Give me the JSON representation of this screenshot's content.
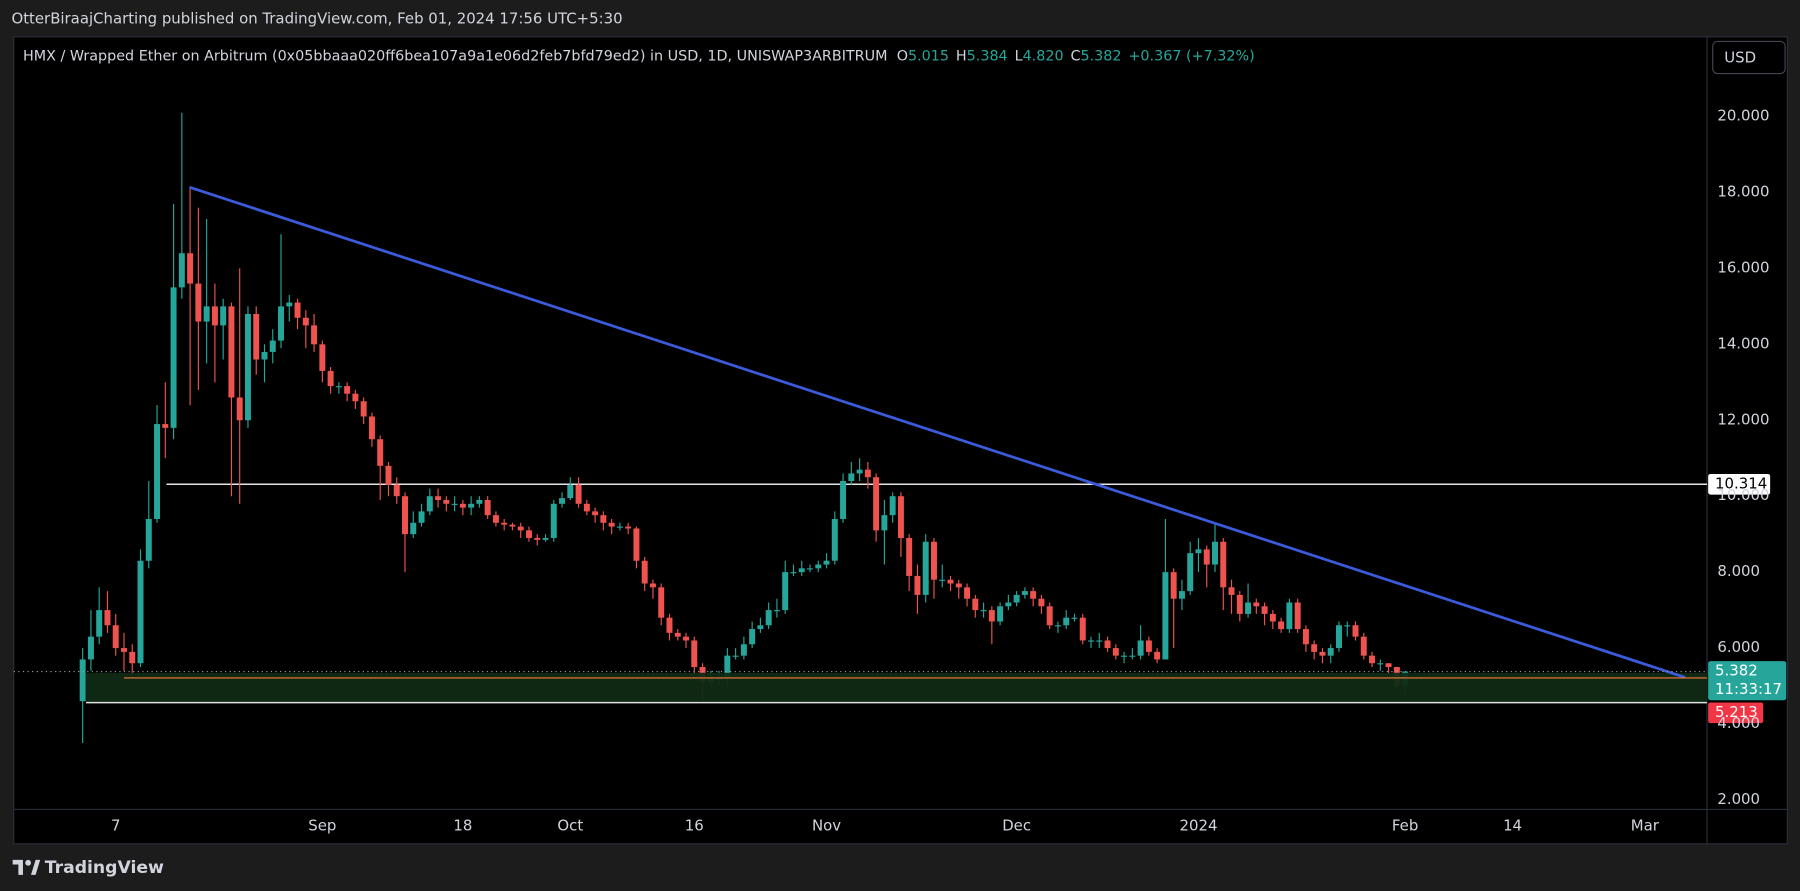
{
  "header": {
    "publisher": "OtterBiraajCharting published on TradingView.com, Feb 01, 2024 17:56 UTC+5:30"
  },
  "currency_button": "USD",
  "footer": {
    "brand": "TradingView"
  },
  "chart_data": {
    "type": "candlestick",
    "title": "HMX / Wrapped Ether on Arbitrum (0x05bbaaa020ff6bea107a9a1e06d2feb7bfd79ed2) in USD, 1D, UNISWAP3ARBITRUM",
    "ohlc_legend": {
      "o_label": "O",
      "open": "5.015",
      "h_label": "H",
      "high": "5.384",
      "l_label": "L",
      "low": "4.820",
      "c_label": "C",
      "close": "5.382",
      "change": "+0.367 (+7.32%)"
    },
    "up_color": "#26a69a",
    "down_color": "#ef5350",
    "log_scale": false,
    "grid": false,
    "ylim": [
      1.75,
      22.1
    ],
    "yticks": [
      {
        "value": 2,
        "label": "2.000"
      },
      {
        "value": 4,
        "label": "4.000"
      },
      {
        "value": 6,
        "label": "6.000"
      },
      {
        "value": 8,
        "label": "8.000"
      },
      {
        "value": 10,
        "label": "10.000"
      },
      {
        "value": 12,
        "label": "12.000"
      },
      {
        "value": 14,
        "label": "14.000"
      },
      {
        "value": 16,
        "label": "16.000"
      },
      {
        "value": 18,
        "label": "18.000"
      },
      {
        "value": 20,
        "label": "20.000"
      }
    ],
    "horizontal_level": 10.314,
    "last_price": 5.382,
    "countdown": "11:33:17",
    "alert_level": 5.213,
    "categories": [
      null,
      null,
      null,
      null,
      "7",
      null,
      null,
      null,
      null,
      null,
      null,
      null,
      null,
      null,
      null,
      null,
      null,
      null,
      null,
      null,
      null,
      null,
      null,
      null,
      null,
      null,
      null,
      null,
      null,
      "Sep",
      null,
      null,
      null,
      null,
      null,
      null,
      null,
      null,
      null,
      null,
      null,
      null,
      null,
      null,
      null,
      null,
      "18",
      null,
      null,
      null,
      null,
      null,
      null,
      null,
      null,
      null,
      null,
      null,
      null,
      "Oct",
      null,
      null,
      null,
      null,
      null,
      null,
      null,
      null,
      null,
      null,
      null,
      null,
      null,
      null,
      "16",
      null,
      null,
      null,
      null,
      null,
      null,
      null,
      null,
      null,
      null,
      null,
      null,
      null,
      null,
      null,
      "Nov",
      null,
      null,
      null,
      null,
      null,
      null,
      null,
      null,
      null,
      null,
      null,
      null,
      null,
      null,
      null,
      null,
      null,
      null,
      null,
      null,
      null,
      null,
      "Dec",
      null,
      null,
      null,
      null,
      null,
      null,
      null,
      null,
      null,
      null,
      null,
      null,
      null,
      null,
      null,
      null,
      null,
      null,
      null,
      null,
      null,
      "2024",
      null,
      null,
      null,
      null,
      null,
      null,
      null,
      null,
      null,
      null,
      null,
      null,
      null,
      null,
      null,
      null,
      null,
      null,
      null,
      null,
      null,
      null,
      null,
      null,
      "Feb",
      null,
      null,
      null,
      null,
      null,
      null,
      null,
      null,
      null,
      null,
      null,
      null,
      "14",
      null,
      null,
      null,
      null,
      null,
      null,
      null,
      null,
      null,
      null,
      null,
      null,
      null,
      null,
      null,
      "Mar",
      null,
      null,
      null,
      null,
      null,
      null,
      null
    ],
    "open": [
      4.6,
      5.7,
      6.3,
      7.0,
      6.6,
      6.0,
      5.9,
      5.6,
      8.3,
      9.4,
      11.9,
      11.8,
      15.5,
      16.4,
      15.6,
      14.6,
      15.0,
      14.5,
      15.0,
      12.6,
      12.0,
      14.8,
      13.6,
      13.8,
      14.1,
      15.0,
      15.1,
      14.7,
      14.5,
      14.0,
      13.3,
      12.9,
      12.9,
      12.7,
      12.5,
      12.1,
      11.5,
      10.8,
      10.3,
      10.0,
      9.0,
      9.3,
      9.6,
      10.0,
      9.9,
      9.8,
      9.8,
      9.7,
      9.8,
      9.9,
      9.5,
      9.3,
      9.25,
      9.2,
      9.1,
      8.9,
      8.85,
      8.9,
      9.8,
      9.95,
      10.3,
      9.8,
      9.6,
      9.5,
      9.3,
      9.2,
      9.2,
      9.15,
      8.3,
      7.7,
      7.6,
      6.8,
      6.4,
      6.3,
      6.2,
      5.5,
      5.1,
      5.2,
      5.2,
      5.8,
      5.8,
      6.1,
      6.5,
      6.6,
      7.0,
      7.0,
      8.0,
      8.0,
      8.1,
      8.1,
      8.2,
      8.3,
      9.4,
      10.4,
      10.6,
      10.7,
      10.5,
      9.1,
      9.5,
      10.0,
      8.9,
      7.9,
      7.4,
      8.8,
      7.8,
      7.8,
      7.7,
      7.6,
      7.3,
      7.0,
      7.0,
      6.7,
      7.1,
      7.2,
      7.4,
      7.5,
      7.3,
      7.1,
      6.6,
      6.6,
      6.8,
      6.8,
      6.2,
      6.2,
      6.2,
      6.0,
      5.8,
      5.8,
      5.8,
      6.2,
      5.9,
      5.7,
      8.0,
      7.3,
      7.5,
      8.5,
      8.6,
      8.2,
      8.8,
      7.6,
      7.4,
      6.9,
      7.2,
      7.1,
      6.9,
      6.7,
      6.5,
      7.2,
      6.5,
      6.1,
      5.9,
      5.8,
      6.0,
      6.6,
      6.6,
      6.3,
      5.8,
      5.6,
      5.6,
      5.5,
      5.015,
      null,
      null,
      null,
      null,
      null,
      null,
      null,
      null,
      null,
      null,
      null,
      null,
      null,
      null,
      null,
      null,
      null,
      null,
      null,
      null,
      null,
      null,
      null,
      null,
      null,
      null,
      null,
      null,
      null,
      null,
      null,
      null,
      null,
      null,
      null,
      null
    ],
    "high": [
      6.0,
      7.0,
      7.6,
      7.5,
      6.9,
      6.4,
      6.1,
      8.6,
      10.4,
      12.4,
      13.0,
      17.7,
      20.1,
      18.1,
      17.6,
      17.3,
      15.6,
      15.2,
      15.1,
      16.0,
      15.0,
      15.0,
      14.0,
      14.4,
      16.9,
      15.3,
      15.2,
      14.9,
      14.8,
      14.1,
      13.4,
      13.0,
      13.0,
      12.8,
      12.6,
      12.2,
      11.6,
      10.9,
      10.5,
      10.1,
      9.6,
      9.8,
      10.2,
      10.2,
      10.0,
      10.0,
      9.9,
      10.0,
      10.0,
      10.0,
      9.6,
      9.4,
      9.3,
      9.3,
      9.2,
      9.0,
      9.0,
      9.9,
      10.1,
      10.5,
      10.5,
      9.9,
      9.7,
      9.6,
      9.4,
      9.3,
      9.3,
      9.2,
      8.4,
      7.8,
      7.7,
      6.9,
      6.5,
      6.4,
      6.3,
      5.6,
      5.4,
      5.4,
      6.0,
      6.0,
      6.3,
      6.7,
      6.8,
      7.2,
      7.3,
      8.3,
      8.2,
      8.3,
      8.2,
      8.3,
      8.5,
      9.6,
      10.6,
      10.9,
      11.0,
      10.9,
      10.6,
      9.9,
      10.1,
      10.1,
      9.0,
      8.2,
      9.0,
      8.9,
      8.2,
      7.9,
      7.8,
      7.7,
      7.4,
      7.2,
      7.1,
      7.2,
      7.4,
      7.5,
      7.6,
      7.6,
      7.4,
      7.2,
      6.7,
      7.0,
      6.9,
      6.9,
      6.3,
      6.4,
      6.3,
      6.1,
      5.9,
      6.0,
      6.6,
      6.3,
      6.0,
      9.4,
      8.1,
      7.8,
      8.8,
      8.9,
      8.7,
      9.3,
      8.9,
      7.8,
      7.5,
      7.7,
      7.3,
      7.2,
      7.0,
      6.8,
      7.3,
      7.3,
      6.6,
      6.2,
      6.0,
      6.1,
      6.7,
      6.7,
      6.7,
      6.4,
      5.9,
      5.7,
      5.6,
      5.5,
      5.384,
      null,
      null,
      null,
      null,
      null,
      null,
      null,
      null,
      null,
      null,
      null,
      null,
      null,
      null,
      null,
      null,
      null,
      null,
      null,
      null,
      null,
      null,
      null,
      null,
      null,
      null,
      null,
      null,
      null,
      null,
      null,
      null,
      null,
      null,
      null,
      null
    ],
    "low": [
      3.5,
      5.4,
      6.1,
      6.4,
      5.8,
      5.4,
      5.2,
      5.5,
      8.1,
      9.3,
      11.0,
      11.5,
      15.2,
      12.4,
      12.8,
      13.5,
      13.0,
      13.6,
      10.0,
      9.8,
      11.8,
      13.2,
      13.0,
      13.5,
      13.9,
      14.6,
      14.4,
      13.9,
      13.8,
      13.0,
      12.7,
      12.7,
      12.5,
      12.3,
      11.9,
      11.3,
      9.9,
      10.0,
      9.8,
      8.0,
      8.9,
      9.2,
      9.5,
      9.7,
      9.6,
      9.6,
      9.5,
      9.5,
      9.7,
      9.4,
      9.2,
      9.1,
      9.1,
      8.9,
      8.8,
      8.7,
      8.8,
      8.8,
      9.7,
      9.9,
      9.7,
      9.5,
      9.3,
      9.1,
      9.0,
      9.1,
      9.0,
      8.1,
      7.5,
      7.3,
      6.6,
      6.2,
      6.2,
      6.0,
      5.3,
      4.6,
      5.0,
      5.0,
      5.0,
      5.7,
      5.7,
      6.0,
      6.4,
      6.5,
      6.8,
      6.9,
      7.9,
      7.9,
      8.0,
      8.0,
      8.1,
      8.2,
      9.3,
      10.3,
      10.4,
      10.2,
      8.8,
      8.2,
      9.3,
      8.4,
      7.5,
      6.9,
      7.2,
      7.3,
      7.6,
      7.5,
      7.3,
      7.1,
      6.8,
      6.8,
      6.1,
      6.6,
      7.0,
      7.1,
      7.3,
      7.1,
      6.9,
      6.5,
      6.4,
      6.5,
      6.7,
      6.1,
      6.0,
      6.0,
      5.9,
      5.7,
      5.6,
      5.7,
      5.7,
      5.8,
      5.6,
      5.7,
      6.0,
      7.0,
      7.4,
      8.0,
      7.6,
      8.0,
      7.0,
      6.9,
      6.7,
      6.8,
      6.9,
      6.6,
      6.5,
      6.4,
      6.4,
      6.4,
      5.9,
      5.7,
      5.6,
      5.6,
      5.9,
      6.3,
      6.2,
      5.7,
      5.5,
      5.4,
      5.3,
      4.9,
      4.82,
      null,
      null,
      null,
      null,
      null,
      null,
      null,
      null,
      null,
      null,
      null,
      null,
      null,
      null,
      null,
      null,
      null,
      null,
      null,
      null,
      null,
      null,
      null,
      null,
      null,
      null,
      null,
      null,
      null,
      null,
      null,
      null,
      null,
      null,
      null,
      null
    ],
    "close": [
      5.7,
      6.3,
      7.0,
      6.6,
      6.0,
      5.9,
      5.6,
      8.3,
      9.4,
      11.9,
      11.8,
      15.5,
      16.4,
      15.6,
      14.6,
      15.0,
      14.5,
      15.0,
      12.6,
      12.0,
      14.8,
      13.6,
      13.8,
      14.1,
      15.0,
      15.1,
      14.7,
      14.5,
      14.0,
      13.3,
      12.9,
      12.9,
      12.7,
      12.5,
      12.1,
      11.5,
      10.8,
      10.3,
      10.0,
      9.0,
      9.3,
      9.6,
      10.0,
      9.9,
      9.8,
      9.8,
      9.7,
      9.8,
      9.9,
      9.5,
      9.3,
      9.25,
      9.2,
      9.1,
      8.9,
      8.85,
      8.9,
      9.8,
      9.95,
      10.3,
      9.8,
      9.6,
      9.5,
      9.3,
      9.2,
      9.2,
      9.15,
      8.3,
      7.7,
      7.6,
      6.8,
      6.4,
      6.3,
      6.2,
      5.5,
      5.1,
      5.2,
      5.2,
      5.8,
      5.8,
      6.1,
      6.5,
      6.6,
      7.0,
      7.0,
      8.0,
      8.0,
      8.1,
      8.1,
      8.2,
      8.3,
      9.4,
      10.4,
      10.6,
      10.7,
      10.5,
      9.1,
      9.5,
      10.0,
      8.9,
      7.9,
      7.4,
      8.8,
      7.8,
      7.8,
      7.7,
      7.6,
      7.3,
      7.0,
      7.0,
      6.7,
      7.1,
      7.2,
      7.4,
      7.5,
      7.3,
      7.1,
      6.6,
      6.6,
      6.8,
      6.8,
      6.2,
      6.2,
      6.2,
      6.0,
      5.8,
      5.8,
      5.8,
      6.2,
      5.9,
      5.7,
      8.0,
      7.3,
      7.5,
      8.5,
      8.6,
      8.2,
      8.8,
      7.6,
      7.4,
      6.9,
      7.2,
      7.1,
      6.9,
      6.7,
      6.5,
      7.2,
      6.5,
      6.1,
      5.9,
      5.8,
      6.0,
      6.6,
      6.6,
      6.3,
      5.8,
      5.6,
      5.6,
      5.5,
      5.0,
      5.382,
      null,
      null,
      null,
      null,
      null,
      null,
      null,
      null,
      null,
      null,
      null,
      null,
      null,
      null,
      null,
      null,
      null,
      null,
      null,
      null,
      null,
      null,
      null,
      null,
      null,
      null,
      null,
      null,
      null,
      null,
      null,
      null,
      null,
      null,
      null,
      null
    ]
  }
}
